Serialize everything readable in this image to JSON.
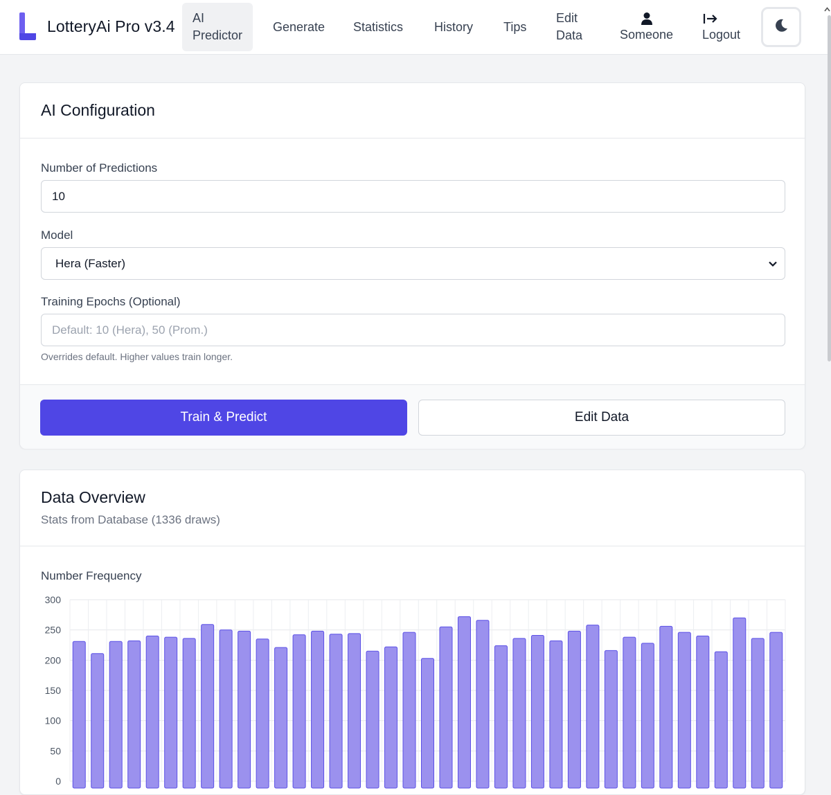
{
  "app": {
    "title": "LotteryAi Pro v3.4",
    "accent_color": "#4f46e5"
  },
  "nav": {
    "ai_predictor": [
      "AI",
      "Predictor"
    ],
    "generate": "Generate",
    "statistics": "Statistics",
    "history": "History",
    "tips": "Tips",
    "edit_data": [
      "Edit",
      "Data"
    ],
    "user": "Someone",
    "logout": "Logout"
  },
  "ai_config": {
    "title": "AI Configuration",
    "predictions_label": "Number of Predictions",
    "predictions_value": "10",
    "model_label": "Model",
    "model_value": "Hera (Faster)",
    "epochs_label": "Training Epochs (Optional)",
    "epochs_placeholder": "Default: 10 (Hera), 50 (Prom.)",
    "epochs_hint": "Overrides default. Higher values train longer.",
    "train_button": "Train & Predict",
    "edit_button": "Edit Data"
  },
  "data_overview": {
    "title": "Data Overview",
    "subtitle": "Stats from Database (1336 draws)",
    "chart_title": "Number Frequency"
  },
  "chart_data": {
    "type": "bar",
    "title": "Number Frequency",
    "ylim": [
      0,
      300
    ],
    "yticks": [
      0,
      50,
      100,
      150,
      200,
      250,
      300
    ],
    "grid": true,
    "bar_color": "#9b91ee",
    "bar_border": "#5b50e6",
    "values": [
      231,
      211,
      231,
      232,
      240,
      238,
      236,
      259,
      250,
      248,
      235,
      221,
      242,
      248,
      243,
      244,
      215,
      222,
      246,
      203,
      255,
      272,
      266,
      224,
      236,
      241,
      232,
      248,
      258,
      216,
      238,
      228,
      256,
      246,
      240,
      214,
      270,
      236,
      246
    ]
  }
}
